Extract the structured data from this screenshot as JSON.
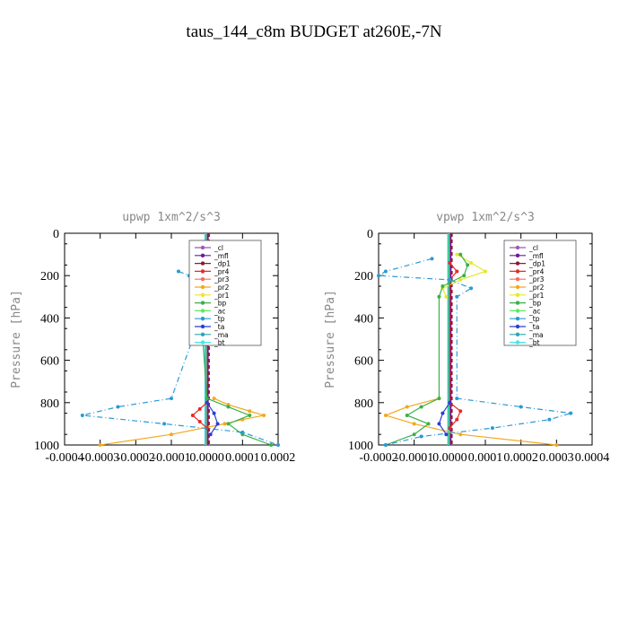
{
  "figure_title": "taus_144_c8m  BUDGET at260E,-7N",
  "legend_entries": [
    "_cl",
    "_mfl",
    "_dp1",
    "_pr4",
    "_pr3",
    "_pr2",
    "_pr1",
    "_bp",
    "_ac",
    "_tp",
    "_ta",
    "_ma",
    "_bt"
  ],
  "colors": {
    "_cl": "#9b59b6",
    "_mfl": "#6a1b9a",
    "_dp1": "#8b1a3a",
    "_pr4": "#e8282b",
    "_pr3": "#ff6a5a",
    "_pr2": "#f3a81c",
    "_pr1": "#e7e72a",
    "_bp": "#3bb04a",
    "_ac": "#59ee59",
    "_tp": "#2a9ad6",
    "_ta": "#2a3ed6",
    "_ma": "#2aa7b8",
    "_bt": "#3ee8e8"
  },
  "chart_data": [
    {
      "type": "line",
      "title": "upwp   1xm^2/s^3",
      "ylabel": "Pressure [hPa]",
      "xlim": [
        -0.0004,
        0.0002
      ],
      "ylim": [
        1000,
        0
      ],
      "xticks": [
        -0.0004,
        -0.0003,
        -0.0002,
        -0.0001,
        0.0,
        0.0001,
        0.0002
      ],
      "xtick_labels": [
        "-0.0004",
        "-0.0003",
        "-0.0002",
        "-0.0001",
        "0.0000",
        "0.0001",
        "0.0002"
      ],
      "yticks": [
        0,
        200,
        400,
        600,
        800,
        1000
      ],
      "ytick_labels": [
        "0",
        "200",
        "400",
        "600",
        "800",
        "1000"
      ],
      "grid": false,
      "legend_position": "upper-right",
      "series": [
        {
          "name": "_pr1",
          "y": [
            100,
            140,
            180,
            220,
            260,
            300
          ],
          "x": [
            1e-05,
            2e-05,
            -1e-05,
            -3e-05,
            -2e-05,
            0.0
          ]
        },
        {
          "name": "_pr2",
          "y": [
            780,
            810,
            840,
            860,
            880,
            900,
            950,
            1000
          ],
          "x": [
            2e-05,
            6e-05,
            0.00012,
            0.00016,
            0.0001,
            5e-05,
            -0.0001,
            -0.0003
          ]
        },
        {
          "name": "_pr4",
          "y": [
            800,
            830,
            860,
            890,
            920
          ],
          "x": [
            0.0,
            -2e-05,
            -4e-05,
            -2e-05,
            0.0
          ]
        },
        {
          "name": "_bp",
          "y": [
            100,
            150,
            200,
            250,
            300,
            780,
            820,
            860,
            900,
            950,
            1000
          ],
          "x": [
            -2e-05,
            -3e-05,
            -4e-05,
            -3e-05,
            -2e-05,
            0.0,
            6e-05,
            0.00012,
            6e-05,
            0.0001,
            0.00018
          ]
        },
        {
          "name": "_tp",
          "y": [
            180,
            200,
            220,
            780,
            820,
            860,
            900,
            940,
            1000
          ],
          "x": [
            -8e-05,
            -5e-05,
            2e-05,
            -0.0001,
            -0.00025,
            -0.00035,
            -0.00012,
            0.0001,
            0.0002
          ]
        },
        {
          "name": "_ta",
          "y": [
            800,
            850,
            900,
            950
          ],
          "x": [
            0.0,
            2e-05,
            3e-05,
            1e-05
          ]
        }
      ]
    },
    {
      "type": "line",
      "title": "vpwp   1xm^2/s^3",
      "ylabel": "Pressure [hPa]",
      "xlim": [
        -0.0002,
        0.0004
      ],
      "ylim": [
        1000,
        0
      ],
      "xticks": [
        -0.0002,
        -0.0001,
        0.0,
        0.0001,
        0.0002,
        0.0003,
        0.0004
      ],
      "xtick_labels": [
        "-0.0002",
        "-0.0001",
        "0.0000",
        "0.0001",
        "0.0002",
        "0.0003",
        "0.0004"
      ],
      "yticks": [
        0,
        200,
        400,
        600,
        800,
        1000
      ],
      "ytick_labels": [
        "0",
        "200",
        "400",
        "600",
        "800",
        "1000"
      ],
      "grid": false,
      "legend_position": "upper-right",
      "series": [
        {
          "name": "_pr1",
          "y": [
            100,
            140,
            180,
            220,
            260,
            300
          ],
          "x": [
            2e-05,
            6e-05,
            0.0001,
            3e-05,
            -2e-05,
            -1e-05
          ]
        },
        {
          "name": "_pr2",
          "y": [
            780,
            820,
            860,
            900,
            950,
            1000
          ],
          "x": [
            -3e-05,
            -0.00012,
            -0.00018,
            -0.0001,
            3e-05,
            0.0003
          ]
        },
        {
          "name": "_pr4",
          "y": [
            140,
            180,
            220,
            800,
            840,
            880,
            920
          ],
          "x": [
            0.0,
            2e-05,
            0.0,
            0.0,
            3e-05,
            2e-05,
            0.0
          ]
        },
        {
          "name": "_bp",
          "y": [
            100,
            150,
            200,
            250,
            300,
            780,
            820,
            860,
            900,
            950,
            1000
          ],
          "x": [
            3e-05,
            5e-05,
            4e-05,
            -2e-05,
            -3e-05,
            -3e-05,
            -8e-05,
            -0.00012,
            -6e-05,
            -0.0001,
            -0.00018
          ]
        },
        {
          "name": "_tp",
          "y": [
            120,
            180,
            200,
            220,
            260,
            300,
            780,
            820,
            850,
            880,
            920,
            960,
            1000
          ],
          "x": [
            -5e-05,
            -0.00018,
            -0.0002,
            0.0,
            6e-05,
            2e-05,
            2e-05,
            0.0002,
            0.00034,
            0.00028,
            0.00012,
            -8e-05,
            -0.00018
          ]
        },
        {
          "name": "_ta",
          "y": [
            800,
            850,
            900,
            950
          ],
          "x": [
            0.0,
            -2e-05,
            -3e-05,
            -1e-05
          ]
        }
      ]
    }
  ]
}
